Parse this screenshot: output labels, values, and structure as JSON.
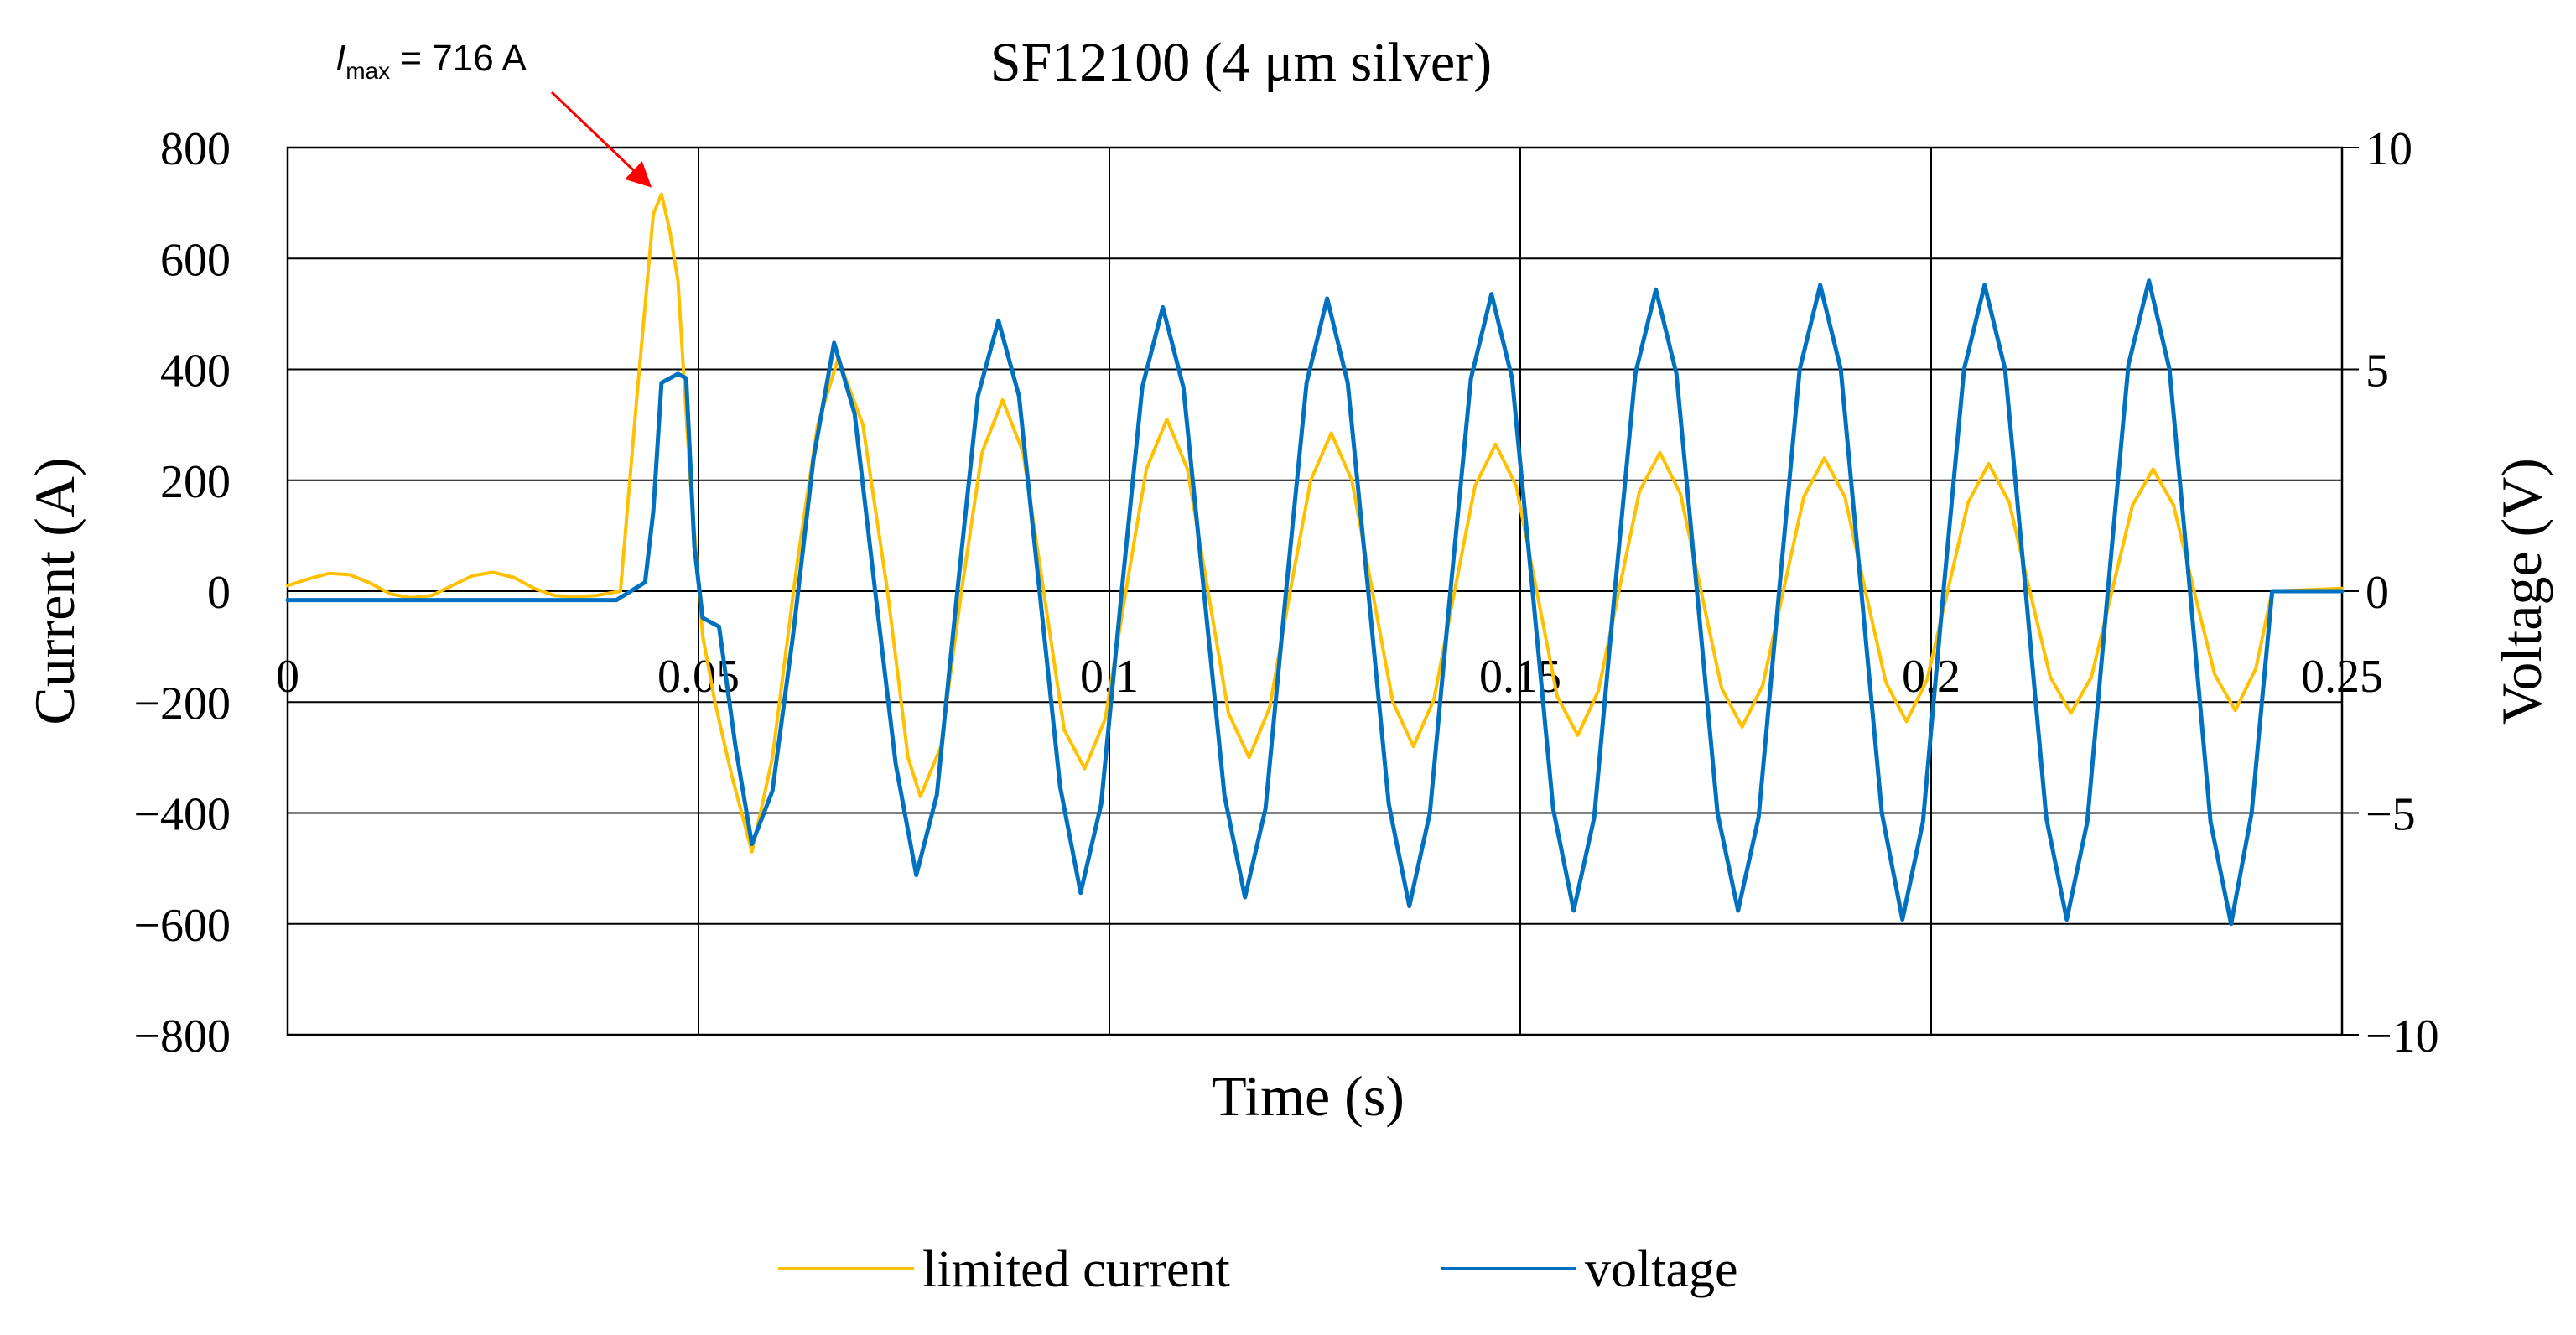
{
  "chart_data": {
    "type": "line",
    "title": "SF12100 (4 μm silver)",
    "xlabel": "Time (s)",
    "ylabel_left": "Current (A)",
    "ylabel_right": "Voltage (V)",
    "xlim": [
      0,
      0.25
    ],
    "ylim_left": [
      -800,
      800
    ],
    "ylim_right": [
      -10,
      10
    ],
    "x_ticks": [
      "0",
      "0.05",
      "0.1",
      "0.15",
      "0.2",
      "0.25"
    ],
    "y_ticks_left": [
      "800",
      "600",
      "400",
      "200",
      "0",
      "−200",
      "−400",
      "−600",
      "−800"
    ],
    "y_ticks_right": [
      "10",
      "5",
      "0",
      "−5",
      "−10"
    ],
    "grid": true,
    "legend_position": "bottom",
    "annotation": {
      "symbol": "I",
      "subscript": "max",
      "text": " = 716 A",
      "arrow_color": "#ff0000",
      "points_to": [
        0.0455,
        716
      ]
    },
    "colors": {
      "current": "#ffc000",
      "voltage": "#0070c0",
      "grid": "#000000",
      "arrow": "#ff0000"
    },
    "series": [
      {
        "name": "limited current",
        "axis": "left",
        "color": "#ffc000",
        "points": [
          [
            0,
            10
          ],
          [
            0.0025,
            22
          ],
          [
            0.005,
            32
          ],
          [
            0.0075,
            30
          ],
          [
            0.01,
            15
          ],
          [
            0.0125,
            -5
          ],
          [
            0.015,
            -12
          ],
          [
            0.0175,
            -8
          ],
          [
            0.02,
            10
          ],
          [
            0.0225,
            28
          ],
          [
            0.025,
            34
          ],
          [
            0.0275,
            25
          ],
          [
            0.03,
            5
          ],
          [
            0.0325,
            -8
          ],
          [
            0.035,
            -10
          ],
          [
            0.0375,
            -8
          ],
          [
            0.0405,
            0
          ],
          [
            0.0425,
            350
          ],
          [
            0.0445,
            680
          ],
          [
            0.0455,
            716
          ],
          [
            0.0465,
            650
          ],
          [
            0.0475,
            560
          ],
          [
            0.049,
            200
          ],
          [
            0.0505,
            -80
          ],
          [
            0.052,
            -200
          ],
          [
            0.054,
            -330
          ],
          [
            0.0565,
            -470
          ],
          [
            0.059,
            -300
          ],
          [
            0.062,
            50
          ],
          [
            0.0645,
            300
          ],
          [
            0.067,
            420
          ],
          [
            0.07,
            300
          ],
          [
            0.073,
            0
          ],
          [
            0.0755,
            -300
          ],
          [
            0.077,
            -370
          ],
          [
            0.0795,
            -280
          ],
          [
            0.082,
            0
          ],
          [
            0.0845,
            250
          ],
          [
            0.087,
            345
          ],
          [
            0.0895,
            250
          ],
          [
            0.092,
            0
          ],
          [
            0.0945,
            -250
          ],
          [
            0.097,
            -320
          ],
          [
            0.0995,
            -230
          ],
          [
            0.102,
            0
          ],
          [
            0.1045,
            220
          ],
          [
            0.107,
            310
          ],
          [
            0.1095,
            220
          ],
          [
            0.112,
            0
          ],
          [
            0.1145,
            -220
          ],
          [
            0.117,
            -300
          ],
          [
            0.1195,
            -210
          ],
          [
            0.122,
            0
          ],
          [
            0.1245,
            200
          ],
          [
            0.127,
            285
          ],
          [
            0.1295,
            200
          ],
          [
            0.132,
            0
          ],
          [
            0.1345,
            -200
          ],
          [
            0.137,
            -280
          ],
          [
            0.1395,
            -195
          ],
          [
            0.142,
            0
          ],
          [
            0.1445,
            190
          ],
          [
            0.147,
            265
          ],
          [
            0.1495,
            190
          ],
          [
            0.152,
            0
          ],
          [
            0.1545,
            -190
          ],
          [
            0.157,
            -260
          ],
          [
            0.1595,
            -180
          ],
          [
            0.162,
            0
          ],
          [
            0.1645,
            180
          ],
          [
            0.167,
            250
          ],
          [
            0.1695,
            175
          ],
          [
            0.172,
            0
          ],
          [
            0.1745,
            -175
          ],
          [
            0.177,
            -245
          ],
          [
            0.1795,
            -170
          ],
          [
            0.182,
            0
          ],
          [
            0.1845,
            170
          ],
          [
            0.187,
            240
          ],
          [
            0.1895,
            170
          ],
          [
            0.192,
            0
          ],
          [
            0.1945,
            -165
          ],
          [
            0.197,
            -235
          ],
          [
            0.1995,
            -160
          ],
          [
            0.202,
            0
          ],
          [
            0.2045,
            160
          ],
          [
            0.207,
            230
          ],
          [
            0.2095,
            160
          ],
          [
            0.212,
            0
          ],
          [
            0.2145,
            -155
          ],
          [
            0.217,
            -220
          ],
          [
            0.2195,
            -155
          ],
          [
            0.222,
            0
          ],
          [
            0.2245,
            155
          ],
          [
            0.227,
            220
          ],
          [
            0.2295,
            155
          ],
          [
            0.232,
            0
          ],
          [
            0.2345,
            -150
          ],
          [
            0.237,
            -215
          ],
          [
            0.2395,
            -140
          ],
          [
            0.2415,
            0
          ],
          [
            0.25,
            5
          ]
        ]
      },
      {
        "name": "voltage",
        "axis": "right",
        "color": "#0070c0",
        "points": [
          [
            0,
            -0.2
          ],
          [
            0.01,
            -0.2
          ],
          [
            0.02,
            -0.2
          ],
          [
            0.03,
            -0.2
          ],
          [
            0.04,
            -0.2
          ],
          [
            0.0435,
            0.2
          ],
          [
            0.0445,
            1.8
          ],
          [
            0.0455,
            4.7
          ],
          [
            0.0475,
            4.9
          ],
          [
            0.0485,
            4.8
          ],
          [
            0.0495,
            1.0
          ],
          [
            0.0505,
            -0.6
          ],
          [
            0.0525,
            -0.8
          ],
          [
            0.0545,
            -3.5
          ],
          [
            0.0565,
            -5.7
          ],
          [
            0.059,
            -4.5
          ],
          [
            0.0615,
            -1.0
          ],
          [
            0.064,
            3.0
          ],
          [
            0.0665,
            5.6
          ],
          [
            0.069,
            4.0
          ],
          [
            0.0715,
            0
          ],
          [
            0.074,
            -3.9
          ],
          [
            0.0765,
            -6.4
          ],
          [
            0.079,
            -4.6
          ],
          [
            0.0815,
            0
          ],
          [
            0.084,
            4.4
          ],
          [
            0.0865,
            6.1
          ],
          [
            0.089,
            4.4
          ],
          [
            0.0915,
            0
          ],
          [
            0.094,
            -4.4
          ],
          [
            0.0965,
            -6.8
          ],
          [
            0.099,
            -4.8
          ],
          [
            0.1015,
            0
          ],
          [
            0.104,
            4.6
          ],
          [
            0.1065,
            6.4
          ],
          [
            0.109,
            4.6
          ],
          [
            0.1115,
            0
          ],
          [
            0.114,
            -4.6
          ],
          [
            0.1165,
            -6.9
          ],
          [
            0.119,
            -4.9
          ],
          [
            0.1215,
            0
          ],
          [
            0.124,
            4.7
          ],
          [
            0.1265,
            6.6
          ],
          [
            0.129,
            4.7
          ],
          [
            0.1315,
            0
          ],
          [
            0.134,
            -4.8
          ],
          [
            0.1365,
            -7.1
          ],
          [
            0.139,
            -5.0
          ],
          [
            0.1415,
            0
          ],
          [
            0.144,
            4.8
          ],
          [
            0.1465,
            6.7
          ],
          [
            0.149,
            4.8
          ],
          [
            0.1515,
            0
          ],
          [
            0.154,
            -4.9
          ],
          [
            0.1565,
            -7.2
          ],
          [
            0.159,
            -5.1
          ],
          [
            0.1615,
            0
          ],
          [
            0.164,
            4.9
          ],
          [
            0.1665,
            6.8
          ],
          [
            0.169,
            4.9
          ],
          [
            0.1715,
            0
          ],
          [
            0.174,
            -5.0
          ],
          [
            0.1765,
            -7.2
          ],
          [
            0.179,
            -5.1
          ],
          [
            0.1815,
            0
          ],
          [
            0.184,
            5.0
          ],
          [
            0.1865,
            6.9
          ],
          [
            0.189,
            5.0
          ],
          [
            0.1915,
            0
          ],
          [
            0.194,
            -5.0
          ],
          [
            0.1965,
            -7.4
          ],
          [
            0.199,
            -5.2
          ],
          [
            0.2015,
            0
          ],
          [
            0.204,
            5.0
          ],
          [
            0.2065,
            6.9
          ],
          [
            0.209,
            5.0
          ],
          [
            0.2115,
            0
          ],
          [
            0.214,
            -5.1
          ],
          [
            0.2165,
            -7.4
          ],
          [
            0.219,
            -5.2
          ],
          [
            0.2215,
            0
          ],
          [
            0.224,
            5.1
          ],
          [
            0.2265,
            7.0
          ],
          [
            0.229,
            5.0
          ],
          [
            0.2315,
            0
          ],
          [
            0.234,
            -5.2
          ],
          [
            0.2365,
            -7.5
          ],
          [
            0.239,
            -5.0
          ],
          [
            0.2415,
            0
          ],
          [
            0.25,
            0
          ]
        ]
      }
    ]
  }
}
